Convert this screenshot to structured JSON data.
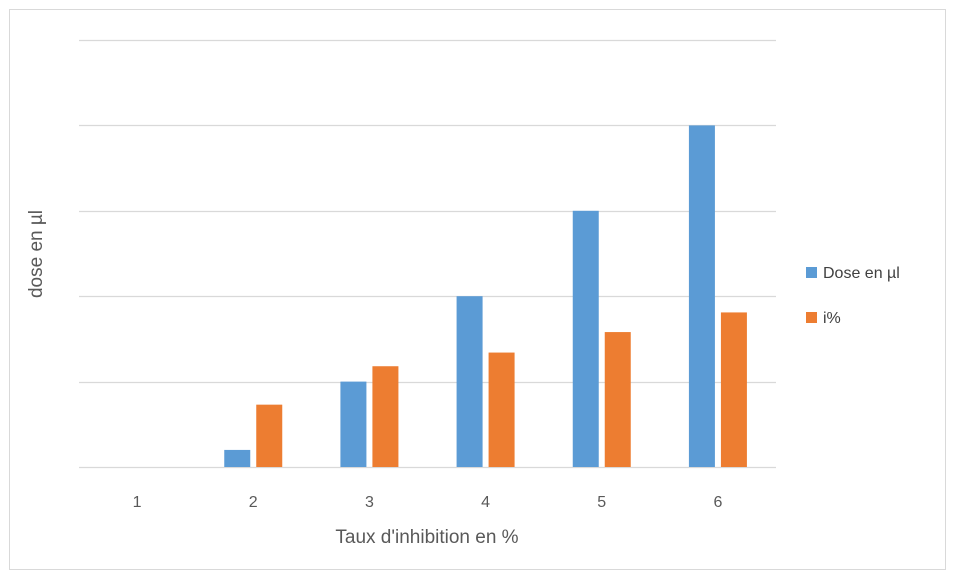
{
  "chart_data": {
    "type": "bar",
    "categories": [
      "1",
      "2",
      "3",
      "4",
      "5",
      "6"
    ],
    "series": [
      {
        "name": "Dose en µl",
        "color": "#5b9bd5",
        "values": [
          0,
          0.2,
          1,
          2,
          3,
          4
        ]
      },
      {
        "name": "i%",
        "color": "#ed7d31",
        "values": [
          0,
          0.73,
          1.18,
          1.34,
          1.58,
          1.81
        ]
      }
    ],
    "xlabel": "Taux d'inhibition en %",
    "ylabel": "dose en µl",
    "ylim": [
      0,
      5
    ],
    "y_tick_labels_shown": false,
    "grid": true,
    "legend_position": "right",
    "gridline_color": "#d9d9d9",
    "axis_color": "#d9d9d9"
  }
}
